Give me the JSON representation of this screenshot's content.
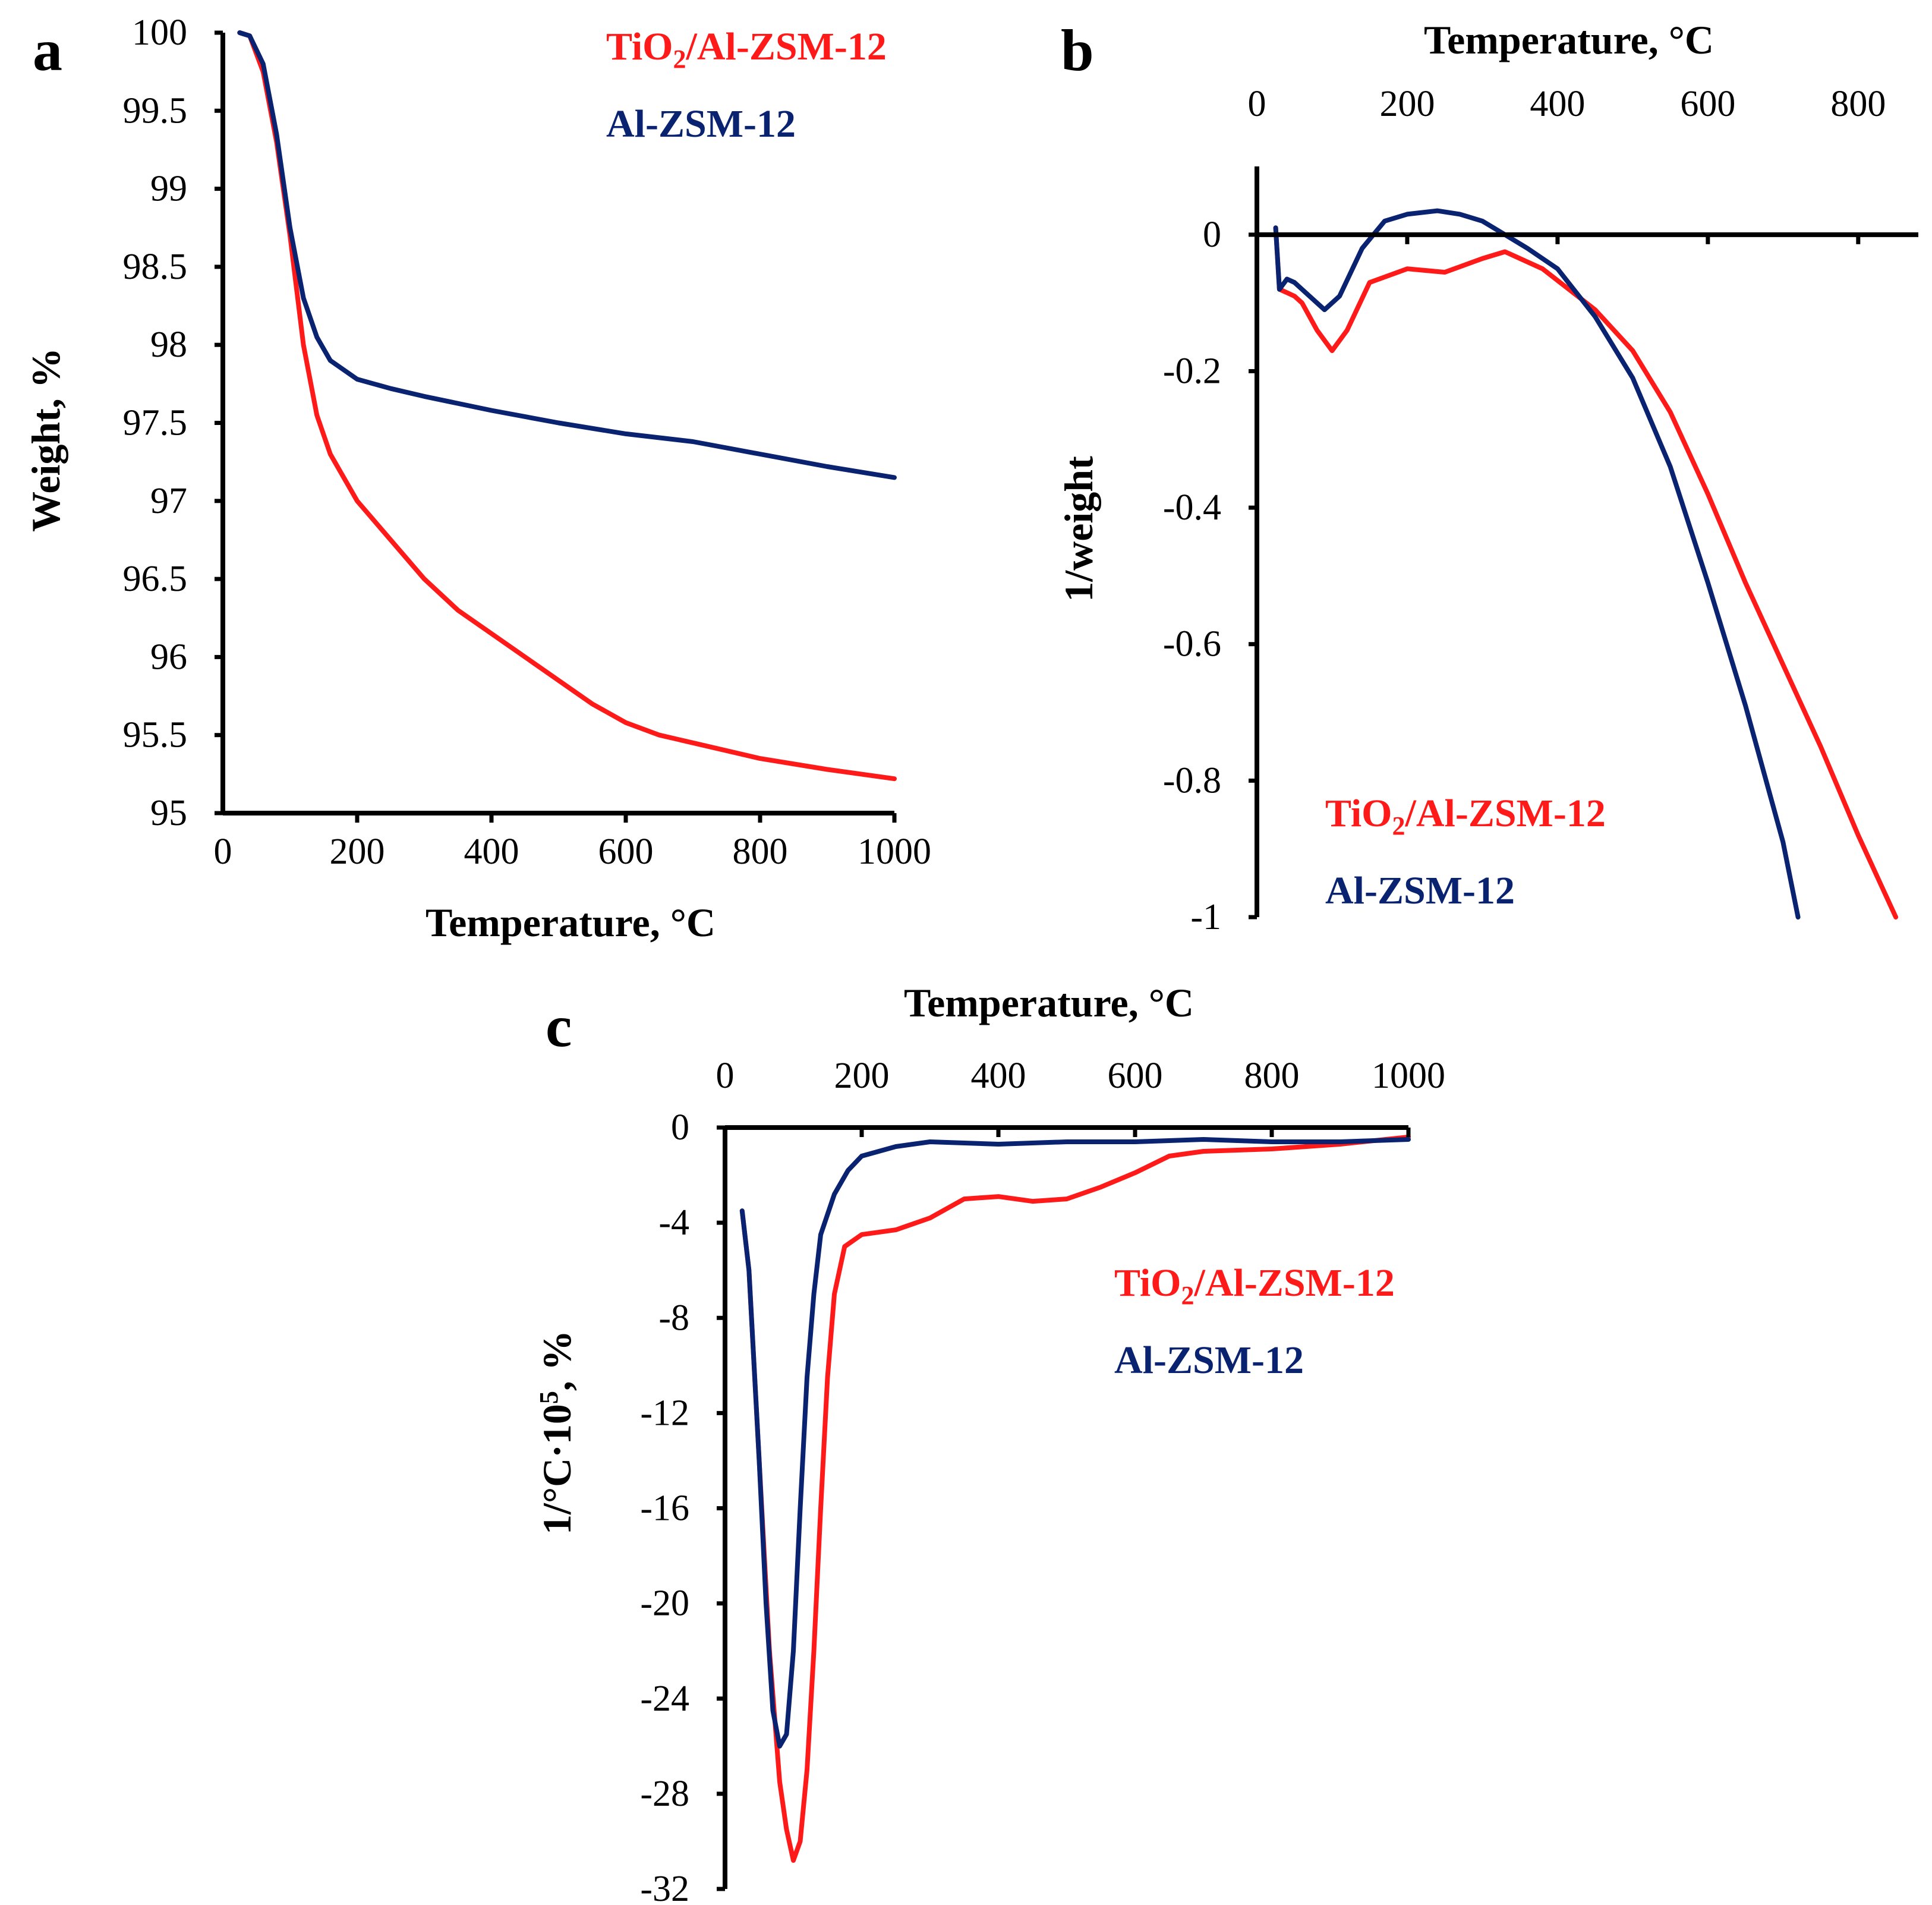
{
  "colors": {
    "tio2": "#ff1a1a",
    "alzsm": "#0a2370"
  },
  "chart_data": [
    {
      "id": "a",
      "panel_label": "a",
      "type": "line",
      "xlabel": "Temperature, °C",
      "ylabel": "Weight, %",
      "xlim": [
        0,
        1000
      ],
      "ylim": [
        95,
        100
      ],
      "xticks": [
        "0",
        "200",
        "400",
        "600",
        "800",
        "1000"
      ],
      "xtick_values": [
        0,
        200,
        400,
        600,
        800,
        1000
      ],
      "yticks": [
        "95",
        "95.5",
        "96",
        "96.5",
        "97",
        "97.5",
        "98",
        "98.5",
        "99",
        "99.5",
        "100"
      ],
      "ytick_values": [
        95,
        95.5,
        96,
        96.5,
        97,
        97.5,
        98,
        98.5,
        99,
        99.5,
        100
      ],
      "legend_position": "top-right",
      "series": [
        {
          "name": "TiO2/Al-ZSM-12",
          "label_main": "TiO",
          "label_sub": "2",
          "label_rest": "/Al-ZSM-12",
          "color": "#ff1a1a",
          "x": [
            25,
            40,
            60,
            80,
            100,
            120,
            140,
            160,
            200,
            250,
            300,
            350,
            400,
            450,
            500,
            550,
            600,
            650,
            700,
            800,
            900,
            1000
          ],
          "y": [
            100,
            99.98,
            99.75,
            99.3,
            98.7,
            98.0,
            97.55,
            97.3,
            97.0,
            96.75,
            96.5,
            96.3,
            96.15,
            96.0,
            95.85,
            95.7,
            95.58,
            95.5,
            95.45,
            95.35,
            95.28,
            95.22
          ]
        },
        {
          "name": "Al-ZSM-12",
          "label_main": "Al-ZSM-12",
          "label_sub": "",
          "label_rest": "",
          "color": "#0a2370",
          "x": [
            25,
            40,
            60,
            80,
            100,
            120,
            140,
            160,
            200,
            250,
            300,
            400,
            500,
            600,
            700,
            800,
            900,
            1000
          ],
          "y": [
            100,
            99.98,
            99.8,
            99.35,
            98.75,
            98.3,
            98.05,
            97.9,
            97.78,
            97.72,
            97.67,
            97.58,
            97.5,
            97.43,
            97.38,
            97.3,
            97.22,
            97.15
          ]
        }
      ]
    },
    {
      "id": "b",
      "panel_label": "b",
      "type": "line",
      "xlabel": "Temperature, °C",
      "ylabel": "1/weight",
      "xlim": [
        0,
        880
      ],
      "ylim": [
        -1,
        0.1
      ],
      "xticks": [
        "0",
        "200",
        "400",
        "600",
        "800"
      ],
      "xtick_values": [
        0,
        200,
        400,
        600,
        800
      ],
      "yticks": [
        "0",
        "-0.2",
        "-0.4",
        "-0.6",
        "-0.8",
        "-1"
      ],
      "ytick_values": [
        0,
        -0.2,
        -0.4,
        -0.6,
        -0.8,
        -1
      ],
      "legend_position": "bottom-left",
      "series": [
        {
          "name": "TiO2/Al-ZSM-12",
          "label_main": "TiO",
          "label_sub": "2",
          "label_rest": "/Al-ZSM-12",
          "color": "#ff1a1a",
          "x": [
            25,
            30,
            40,
            50,
            60,
            80,
            100,
            120,
            150,
            200,
            250,
            300,
            330,
            380,
            450,
            500,
            550,
            600,
            650,
            700,
            750,
            800,
            850
          ],
          "y": [
            0.01,
            -0.08,
            -0.085,
            -0.09,
            -0.1,
            -0.14,
            -0.17,
            -0.14,
            -0.07,
            -0.05,
            -0.055,
            -0.035,
            -0.025,
            -0.05,
            -0.11,
            -0.17,
            -0.26,
            -0.38,
            -0.51,
            -0.63,
            -0.75,
            -0.88,
            -1.0
          ]
        },
        {
          "name": "Al-ZSM-12",
          "label_main": "Al-ZSM-12",
          "label_sub": "",
          "label_rest": "",
          "color": "#0a2370",
          "x": [
            25,
            30,
            40,
            50,
            70,
            90,
            110,
            140,
            170,
            200,
            240,
            270,
            300,
            330,
            360,
            400,
            450,
            500,
            550,
            600,
            650,
            700,
            720
          ],
          "y": [
            0.01,
            -0.08,
            -0.065,
            -0.07,
            -0.09,
            -0.11,
            -0.09,
            -0.02,
            0.02,
            0.03,
            0.035,
            0.03,
            0.02,
            0.0,
            -0.02,
            -0.05,
            -0.12,
            -0.21,
            -0.34,
            -0.51,
            -0.69,
            -0.89,
            -1.0
          ]
        }
      ]
    },
    {
      "id": "c",
      "panel_label": "c",
      "type": "line",
      "xlabel": "Temperature, °C",
      "ylabel_main": "1/°C·10",
      "ylabel_sup": "5",
      "ylabel_rest": ", %",
      "xlim": [
        0,
        1000
      ],
      "ylim": [
        -32,
        0
      ],
      "xticks": [
        "0",
        "200",
        "400",
        "600",
        "800",
        "1000"
      ],
      "xtick_values": [
        0,
        200,
        400,
        600,
        800,
        1000
      ],
      "yticks": [
        "0",
        "-4",
        "-8",
        "-12",
        "-16",
        "-20",
        "-24",
        "-28",
        "-32"
      ],
      "ytick_values": [
        0,
        -4,
        -8,
        -12,
        -16,
        -20,
        -24,
        -28,
        -32
      ],
      "legend_position": "top-right",
      "series": [
        {
          "name": "TiO2/Al-ZSM-12",
          "label_main": "TiO",
          "label_sub": "2",
          "label_rest": "/Al-ZSM-12",
          "color": "#ff1a1a",
          "x": [
            25,
            35,
            50,
            65,
            80,
            90,
            100,
            110,
            120,
            130,
            140,
            150,
            160,
            175,
            200,
            250,
            300,
            350,
            400,
            450,
            500,
            550,
            600,
            650,
            700,
            800,
            900,
            1000
          ],
          "y": [
            -3.5,
            -6,
            -14,
            -22,
            -27.5,
            -29.5,
            -30.8,
            -30,
            -27,
            -22,
            -16,
            -10.5,
            -7,
            -5,
            -4.5,
            -4.3,
            -3.8,
            -3.0,
            -2.9,
            -3.1,
            -3.0,
            -2.5,
            -1.9,
            -1.2,
            -1.0,
            -0.9,
            -0.7,
            -0.4
          ]
        },
        {
          "name": "Al-ZSM-12",
          "label_main": "Al-ZSM-12",
          "label_sub": "",
          "label_rest": "",
          "color": "#0a2370",
          "x": [
            25,
            35,
            50,
            60,
            70,
            80,
            90,
            100,
            110,
            120,
            130,
            140,
            160,
            180,
            200,
            250,
            300,
            400,
            500,
            600,
            700,
            800,
            900,
            1000
          ],
          "y": [
            -3.5,
            -6,
            -14,
            -20,
            -24.5,
            -26,
            -25.5,
            -22,
            -16,
            -10.5,
            -7,
            -4.5,
            -2.8,
            -1.8,
            -1.2,
            -0.8,
            -0.6,
            -0.7,
            -0.6,
            -0.6,
            -0.5,
            -0.6,
            -0.6,
            -0.5
          ]
        }
      ]
    }
  ]
}
